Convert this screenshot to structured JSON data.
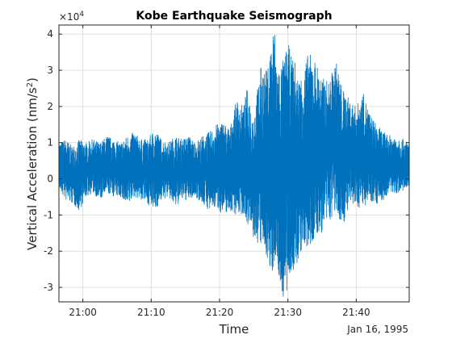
{
  "chart_data": {
    "type": "line",
    "title": "Kobe Earthquake Seismograph",
    "xlabel": "Time",
    "ylabel": "Vertical Acceleration (nm/s",
    "ylabel_superscript": "2",
    "ylabel_suffix": ")",
    "exponent_base": "×10",
    "exponent_power": "4",
    "date_label": "Jan 16, 1995",
    "xlim": [
      "20:56:30",
      "21:47:45"
    ],
    "ylim": [
      -3.4,
      4.25
    ],
    "y_units_scale": 10000,
    "xticks": [
      {
        "value": "21:00:00",
        "label": "21:00"
      },
      {
        "value": "21:10:00",
        "label": "21:10"
      },
      {
        "value": "21:20:00",
        "label": "21:20"
      },
      {
        "value": "21:30:00",
        "label": "21:30"
      },
      {
        "value": "21:40:00",
        "label": "21:40"
      }
    ],
    "yticks": [
      {
        "value": -3,
        "label": "-3"
      },
      {
        "value": -2,
        "label": "-2"
      },
      {
        "value": -1,
        "label": "-1"
      },
      {
        "value": 0,
        "label": "0"
      },
      {
        "value": 1,
        "label": "1"
      },
      {
        "value": 2,
        "label": "2"
      },
      {
        "value": 3,
        "label": "3"
      },
      {
        "value": 4,
        "label": "4"
      }
    ],
    "grid": true,
    "line_color": "#0072BD",
    "series": [
      {
        "x": [
          "20:56:30",
          "20:57:30",
          "20:58:30",
          "20:59:30",
          "21:00:30",
          "21:01:30",
          "21:02:30",
          "21:03:30",
          "21:04:30",
          "21:05:30",
          "21:06:30",
          "21:07:30",
          "21:08:30",
          "21:09:30",
          "21:10:30",
          "21:11:30",
          "21:12:30",
          "21:13:30",
          "21:14:30",
          "21:15:30",
          "21:16:30",
          "21:17:30",
          "21:18:30",
          "21:19:30",
          "21:20:30",
          "21:21:30",
          "21:22:30",
          "21:23:30",
          "21:24:00",
          "21:25:00",
          "21:26:00",
          "21:27:00",
          "21:27:30",
          "21:28:00",
          "21:28:30",
          "21:29:00",
          "21:29:30",
          "21:30:00",
          "21:30:30",
          "21:31:00",
          "21:31:30",
          "21:32:00",
          "21:33:00",
          "21:34:00",
          "21:35:00",
          "21:36:00",
          "21:37:00",
          "21:38:00",
          "21:39:00",
          "21:40:00",
          "21:41:00",
          "21:42:00",
          "21:43:00",
          "21:44:00",
          "21:45:00",
          "21:46:00",
          "21:47:45"
        ],
        "y_max": [
          1.0,
          1.1,
          0.9,
          1.1,
          1.0,
          1.1,
          1.0,
          1.2,
          1.1,
          1.0,
          1.2,
          1.3,
          1.1,
          1.1,
          1.4,
          1.1,
          1.0,
          1.2,
          1.1,
          1.2,
          1.0,
          1.2,
          1.3,
          1.5,
          1.6,
          1.4,
          2.2,
          2.0,
          2.5,
          1.8,
          3.1,
          3.0,
          3.8,
          4.3,
          3.1,
          3.2,
          3.4,
          3.8,
          3.4,
          3.3,
          2.8,
          2.9,
          3.5,
          3.3,
          2.8,
          2.7,
          3.3,
          2.5,
          2.2,
          2.0,
          2.4,
          1.8,
          1.5,
          1.3,
          1.2,
          1.2,
          1.0
        ],
        "y_min": [
          -0.3,
          -0.6,
          -0.7,
          -0.9,
          -0.5,
          -0.4,
          -0.6,
          -0.4,
          -0.5,
          -0.5,
          -0.8,
          -0.5,
          -0.6,
          -0.7,
          -0.9,
          -0.6,
          -0.5,
          -0.8,
          -0.6,
          -0.6,
          -0.5,
          -0.7,
          -0.9,
          -0.8,
          -1.0,
          -0.9,
          -1.0,
          -1.0,
          -1.2,
          -1.7,
          -1.9,
          -2.2,
          -2.9,
          -2.3,
          -2.5,
          -3.2,
          -3.4,
          -3.3,
          -2.5,
          -2.8,
          -2.3,
          -2.0,
          -2.0,
          -1.7,
          -1.5,
          -1.2,
          -1.0,
          -1.3,
          -0.8,
          -0.8,
          -0.8,
          -0.6,
          -0.7,
          -0.6,
          -0.4,
          -0.4,
          -0.3
        ]
      }
    ]
  }
}
